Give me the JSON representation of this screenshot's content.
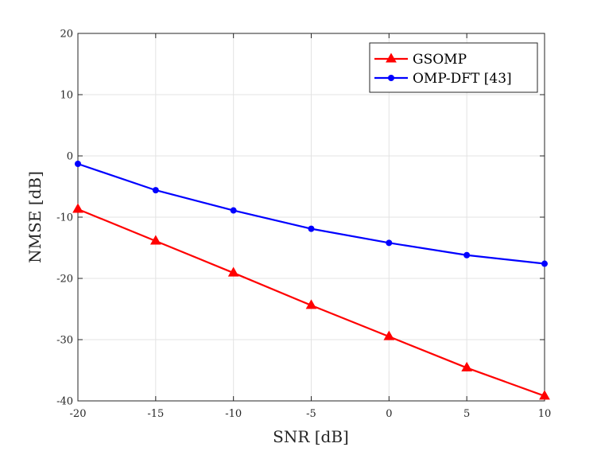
{
  "chart_data": {
    "type": "line",
    "title": "",
    "xlabel": "SNR [dB]",
    "ylabel": "NMSE [dB]",
    "xlim": [
      -20,
      10
    ],
    "ylim": [
      -40,
      20
    ],
    "xticks": [
      -20,
      -15,
      -10,
      -5,
      0,
      5,
      10
    ],
    "yticks": [
      -40,
      -30,
      -20,
      -10,
      0,
      10,
      20
    ],
    "grid": true,
    "legend_position": "top-right",
    "x": [
      -20,
      -15,
      -10,
      -5,
      0,
      5,
      10
    ],
    "series": [
      {
        "name": "GSOMP",
        "color": "#ff0000",
        "marker": "triangle",
        "values": [
          -8.7,
          -13.9,
          -19.1,
          -24.4,
          -29.5,
          -34.6,
          -39.2
        ]
      },
      {
        "name": "OMP-DFT [43]",
        "color": "#0000ff",
        "marker": "circle",
        "values": [
          -1.3,
          -5.6,
          -8.9,
          -11.9,
          -14.2,
          -16.2,
          -17.6
        ]
      }
    ]
  }
}
